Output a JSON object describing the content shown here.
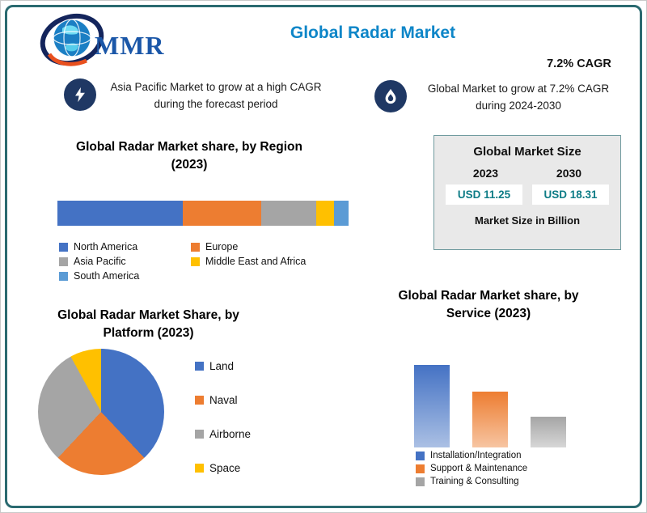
{
  "brand": {
    "name": "MMR"
  },
  "header": {
    "title": "Global Radar Market",
    "cagr_badge": "7.2% CAGR"
  },
  "highlights": {
    "left": "Asia Pacific Market to grow at a high CAGR during the forecast period",
    "right": "Global Market to grow at 7.2% CAGR during 2024-2030"
  },
  "market_size_box": {
    "title": "Global Market Size",
    "years": [
      "2023",
      "2030"
    ],
    "values": [
      "USD 11.25",
      "USD 18.31"
    ],
    "note": "Market Size in Billion"
  },
  "colors": {
    "title_blue": "#0E86C8",
    "frame_teal": "#2A6A70",
    "icon_navy": "#1F3864",
    "value_teal": "#0E7C86",
    "box_gray": "#E9E9E9"
  },
  "chart_data": [
    {
      "id": "region",
      "type": "bar",
      "subtype": "stacked-horizontal",
      "title": "Global Radar Market share, by Region (2023)",
      "legend_position": "bottom",
      "segments": [
        {
          "label": "North America",
          "value": 43,
          "color": "#4472C4"
        },
        {
          "label": "Europe",
          "value": 27,
          "color": "#ED7D31"
        },
        {
          "label": "Asia Pacific",
          "value": 19,
          "color": "#A5A5A5"
        },
        {
          "label": "Middle East and Africa",
          "value": 6,
          "color": "#FFC000"
        },
        {
          "label": "South America",
          "value": 5,
          "color": "#5B9BD5"
        }
      ]
    },
    {
      "id": "platform",
      "type": "pie",
      "title": "Global Radar Market Share, by Platform (2023)",
      "legend_position": "right",
      "slices": [
        {
          "label": "Land",
          "value": 38,
          "color": "#4472C4"
        },
        {
          "label": "Naval",
          "value": 24,
          "color": "#ED7D31"
        },
        {
          "label": "Airborne",
          "value": 30,
          "color": "#A5A5A5"
        },
        {
          "label": "Space",
          "value": 8,
          "color": "#FFC000"
        }
      ]
    },
    {
      "id": "service",
      "type": "bar",
      "title": "Global Radar Market share, by Service (2023)",
      "legend_position": "bottom",
      "categories": [
        "Installation/Integration",
        "Support & Maintenance",
        "Training & Consulting"
      ],
      "values": [
        100,
        68,
        37
      ],
      "colors": [
        "#4472C4",
        "#ED7D31",
        "#A5A5A5"
      ],
      "ylim": [
        0,
        100
      ]
    }
  ]
}
